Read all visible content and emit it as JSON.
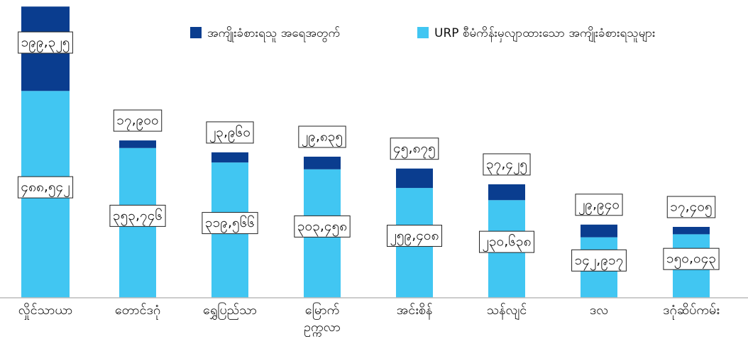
{
  "chart_data": {
    "type": "stacked_bar",
    "categories": [
      "လှိုင်သာယာ",
      "တောင်ဒဂုံ",
      "ရွှေပြည်သာ",
      "မြောက်\nဥက္ကလာ",
      "အင်းစိန်",
      "သန်လျင်",
      "ဒလ",
      "ဒဂုံဆိပ်ကမ်း"
    ],
    "series": [
      {
        "name": "URP စီမံကိန်းမှလျာထားသော အကျိုးခံစားရသူများ",
        "color": "#41c6f2",
        "values": [
          488542,
          353746,
          319566,
          303458,
          259408,
          230638,
          142917,
          150043
        ],
        "value_labels": [
          "၄၈၈,၅၄၂",
          "၃၅၃,၇၄၆",
          "၃၁၉,၅၆၆",
          "၃၀၃,၄၅၈",
          "၂၅၉,၄၀၈",
          "၂၃၀,၆၃၈",
          "၁၄၂,၉၁၇",
          "၁၅၀,၀၄၃"
        ]
      },
      {
        "name": "အကျိုးခံစားရသူ အရေအတွက်",
        "color": "#0a3d8f",
        "values": [
          199325,
          17900,
          23960,
          29835,
          45875,
          37425,
          29940,
          17405
        ],
        "value_labels": [
          "၁၉၉,၃၂၅",
          "၁၇,၉၀၀",
          "၂၃,၉၆၀",
          "၂၉,၈၃၅",
          "၄၅,၈၇၅",
          "၃၇,၄၂၅",
          "၂၉,၉၄၀",
          "၁၇,၄၀၅"
        ]
      }
    ],
    "ylim": [
      0,
      700000
    ]
  }
}
